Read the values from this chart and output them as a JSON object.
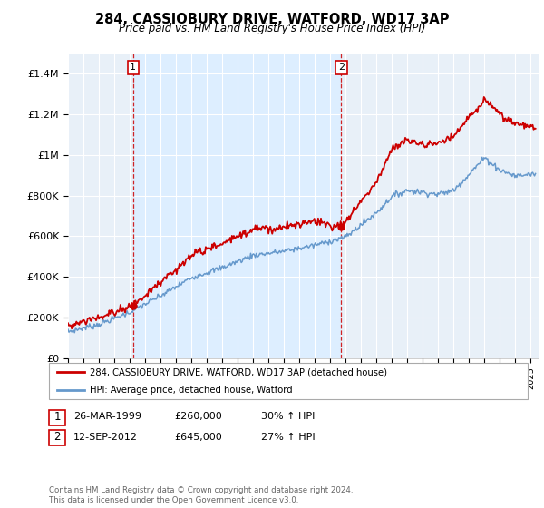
{
  "title": "284, CASSIOBURY DRIVE, WATFORD, WD17 3AP",
  "subtitle": "Price paid vs. HM Land Registry's House Price Index (HPI)",
  "footer": "Contains HM Land Registry data © Crown copyright and database right 2024.\nThis data is licensed under the Open Government Licence v3.0.",
  "legend_line1": "284, CASSIOBURY DRIVE, WATFORD, WD17 3AP (detached house)",
  "legend_line2": "HPI: Average price, detached house, Watford",
  "transaction1_date": "26-MAR-1999",
  "transaction1_price": "£260,000",
  "transaction1_hpi": "30% ↑ HPI",
  "transaction2_date": "12-SEP-2012",
  "transaction2_price": "£645,000",
  "transaction2_hpi": "27% ↑ HPI",
  "marker1_x": 1999.22,
  "marker1_y": 260000,
  "marker2_x": 2012.71,
  "marker2_y": 645000,
  "vline1_x": 1999.22,
  "vline2_x": 2012.71,
  "hpi_color": "#6699cc",
  "price_color": "#cc0000",
  "shade_color": "#ddeeff",
  "bg_color": "#e8f0f8",
  "ylim_min": 0,
  "ylim_max": 1500000,
  "xlim_min": 1995.0,
  "xlim_max": 2025.5,
  "yticks": [
    0,
    200000,
    400000,
    600000,
    800000,
    1000000,
    1200000,
    1400000
  ],
  "ytick_labels": [
    "£0",
    "£200K",
    "£400K",
    "£600K",
    "£800K",
    "£1M",
    "£1.2M",
    "£1.4M"
  ]
}
